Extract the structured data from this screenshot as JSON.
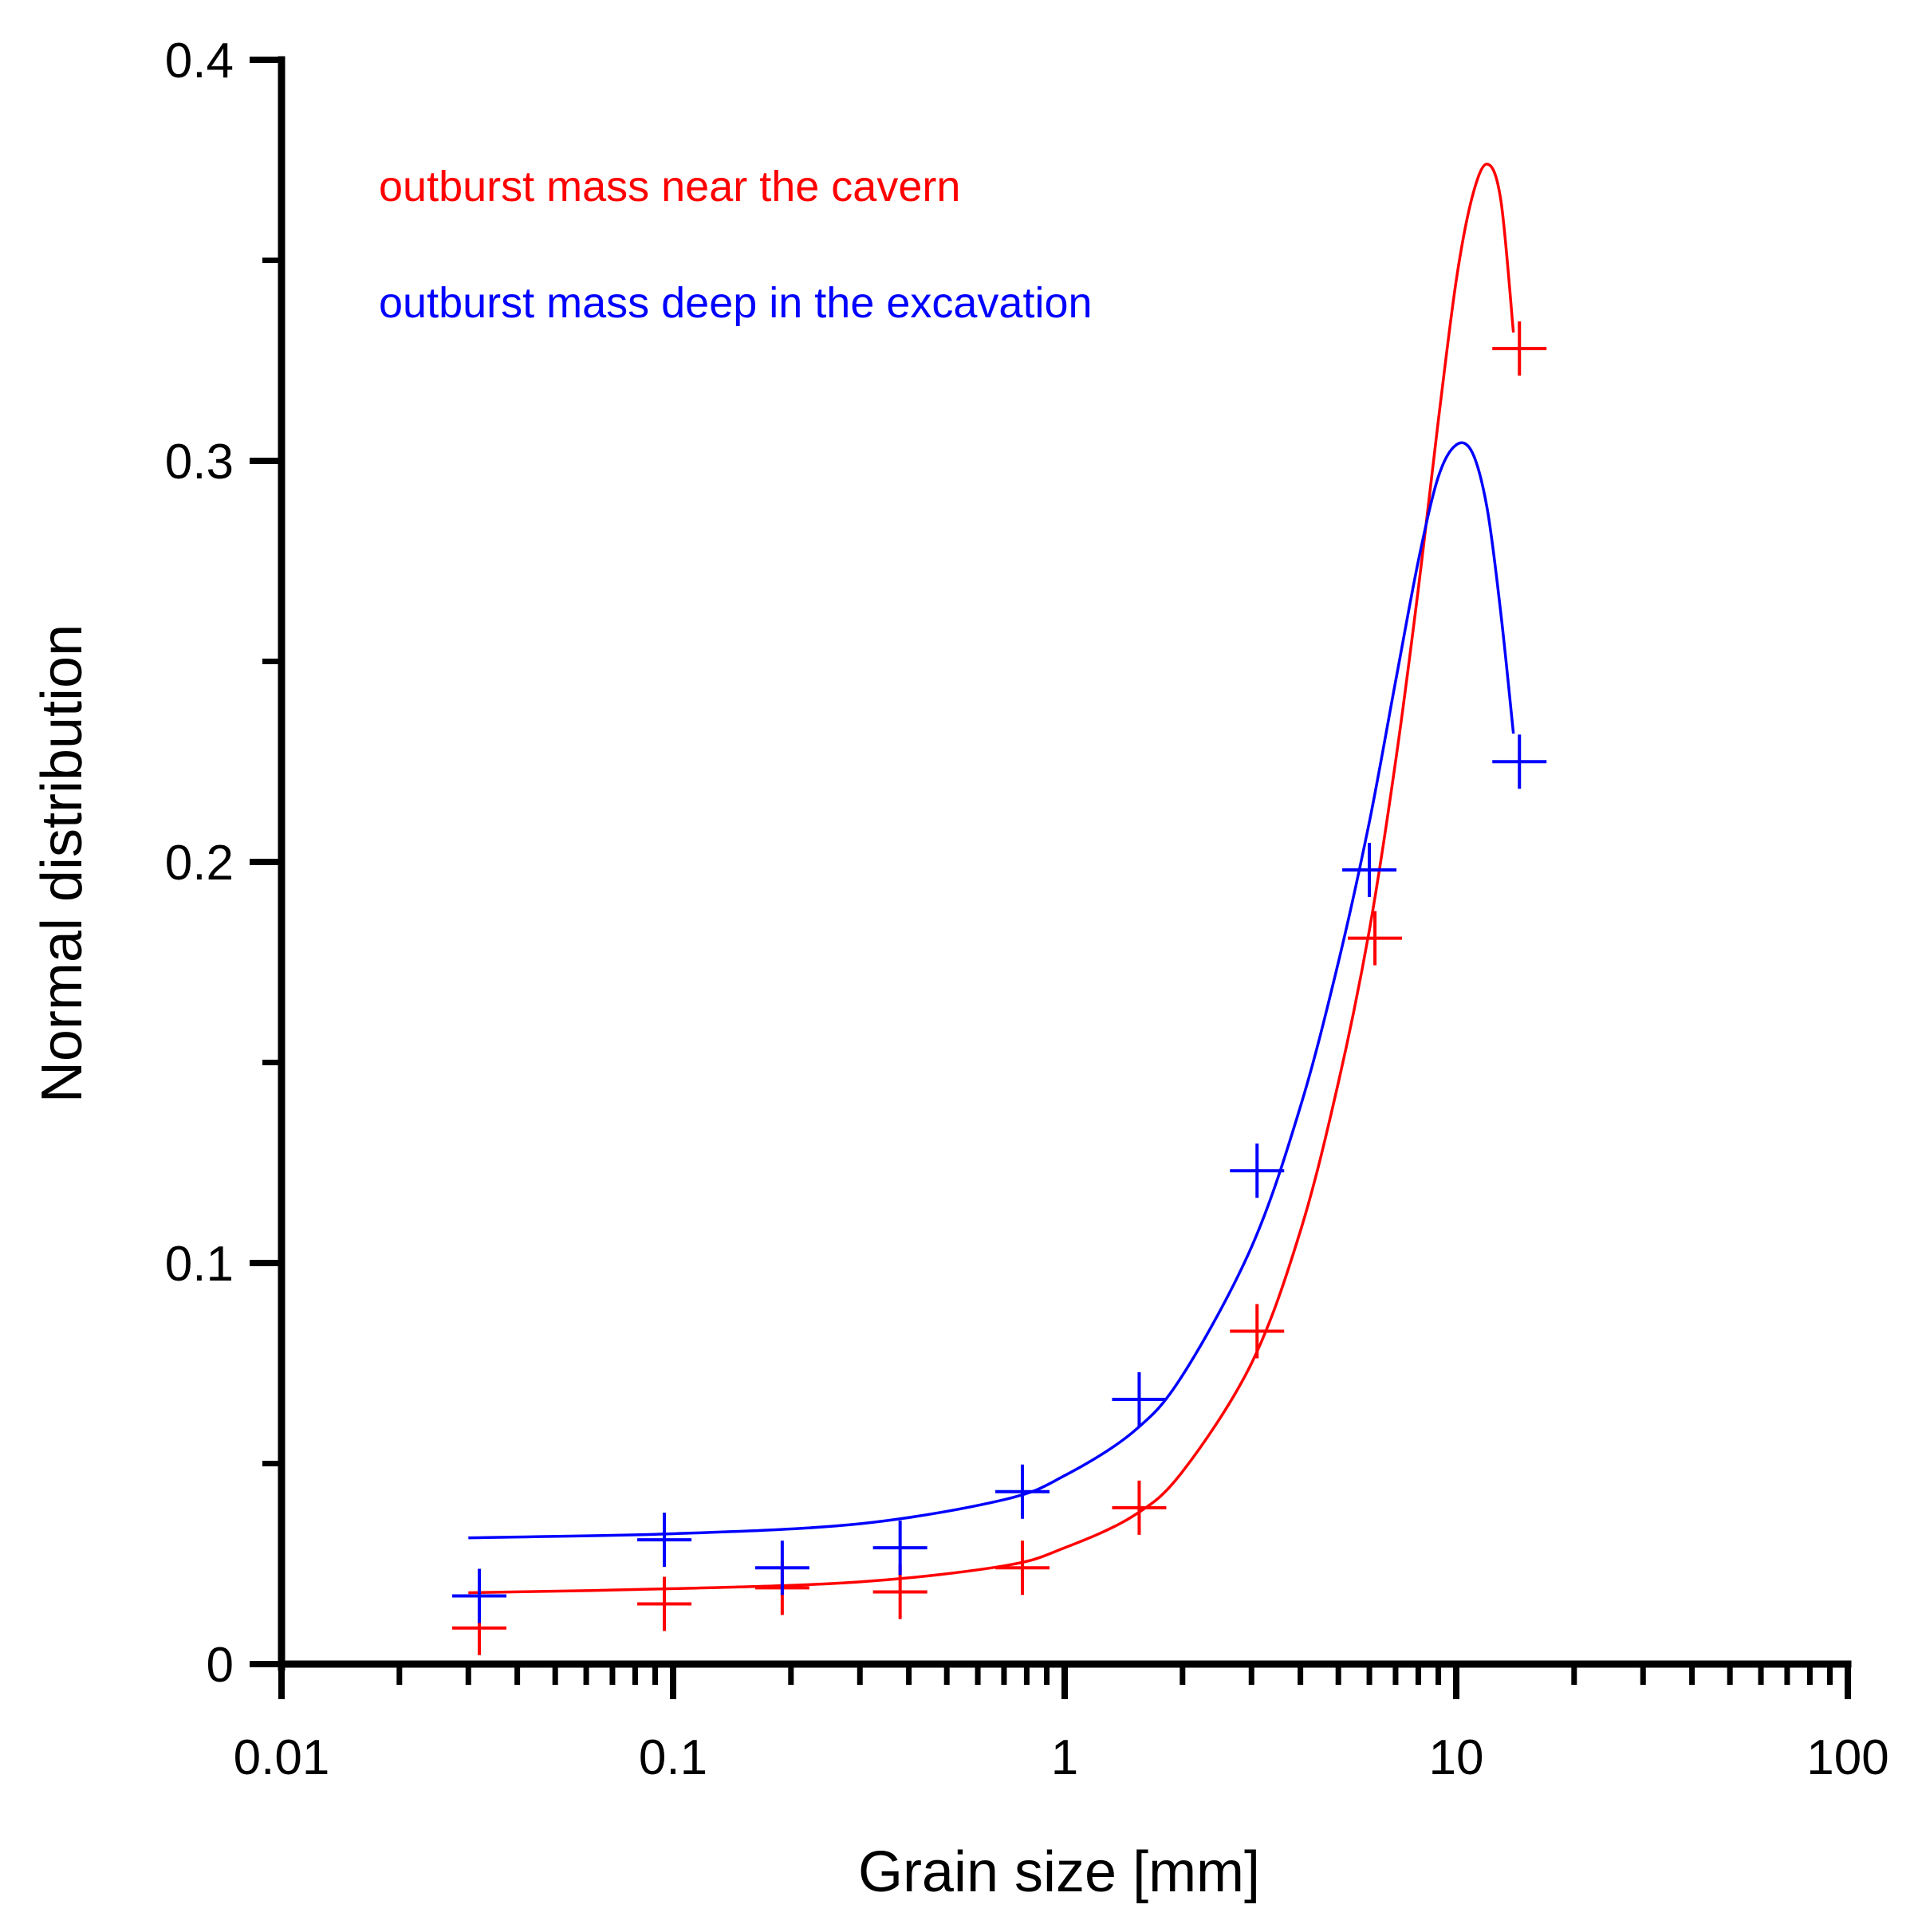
{
  "chart_data": {
    "type": "scatter",
    "title": "",
    "xlabel": "Grain size [mm]",
    "ylabel": "Normal distribution",
    "xscale": "log",
    "xlim": [
      0.01,
      100
    ],
    "ylim": [
      0,
      0.4
    ],
    "xticks": [
      {
        "value": 0.01,
        "label": "0.01"
      },
      {
        "value": 0.1,
        "label": "0.1"
      },
      {
        "value": 1,
        "label": "1"
      },
      {
        "value": 10,
        "label": "10"
      },
      {
        "value": 100,
        "label": "100"
      }
    ],
    "yticks": [
      {
        "value": 0,
        "label": "0"
      },
      {
        "value": 0.1,
        "label": "0.1"
      },
      {
        "value": 0.2,
        "label": "0.2"
      },
      {
        "value": 0.3,
        "label": "0.3"
      },
      {
        "value": 0.4,
        "label": "0.4"
      }
    ],
    "yminor": [
      0.05,
      0.15,
      0.25,
      0.35
    ],
    "grid": false,
    "legend_position": "top-left",
    "series": [
      {
        "name": "outburst mass near the cavern",
        "color": "#ff0000",
        "marker": "plus",
        "points": [
          {
            "x": 0.032,
            "y": 0.009
          },
          {
            "x": 0.095,
            "y": 0.015
          },
          {
            "x": 0.19,
            "y": 0.019
          },
          {
            "x": 0.38,
            "y": 0.018
          },
          {
            "x": 0.78,
            "y": 0.024
          },
          {
            "x": 1.55,
            "y": 0.039
          },
          {
            "x": 3.1,
            "y": 0.083
          },
          {
            "x": 6.2,
            "y": 0.181
          },
          {
            "x": 14.5,
            "y": 0.328
          }
        ],
        "fit_curve": [
          {
            "x": 0.03,
            "y": 0.0178
          },
          {
            "x": 0.1,
            "y": 0.0188
          },
          {
            "x": 0.3,
            "y": 0.0205
          },
          {
            "x": 0.7,
            "y": 0.0245
          },
          {
            "x": 1.0,
            "y": 0.029
          },
          {
            "x": 1.5,
            "y": 0.037
          },
          {
            "x": 2.0,
            "y": 0.048
          },
          {
            "x": 3.0,
            "y": 0.075
          },
          {
            "x": 4.0,
            "y": 0.108
          },
          {
            "x": 5.0,
            "y": 0.145
          },
          {
            "x": 6.0,
            "y": 0.183
          },
          {
            "x": 7.0,
            "y": 0.225
          },
          {
            "x": 8.0,
            "y": 0.268
          },
          {
            "x": 9.0,
            "y": 0.31
          },
          {
            "x": 10.0,
            "y": 0.345
          },
          {
            "x": 11.0,
            "y": 0.366
          },
          {
            "x": 12.0,
            "y": 0.374
          },
          {
            "x": 13.0,
            "y": 0.365
          },
          {
            "x": 14.0,
            "y": 0.332
          }
        ]
      },
      {
        "name": "outburst mass deep in the excavation",
        "color": "#0000ff",
        "marker": "plus",
        "points": [
          {
            "x": 0.032,
            "y": 0.017
          },
          {
            "x": 0.095,
            "y": 0.031
          },
          {
            "x": 0.19,
            "y": 0.024
          },
          {
            "x": 0.38,
            "y": 0.029
          },
          {
            "x": 0.78,
            "y": 0.043
          },
          {
            "x": 1.55,
            "y": 0.066
          },
          {
            "x": 3.1,
            "y": 0.123
          },
          {
            "x": 6.0,
            "y": 0.198
          },
          {
            "x": 14.5,
            "y": 0.225
          }
        ],
        "fit_curve": [
          {
            "x": 0.03,
            "y": 0.0315
          },
          {
            "x": 0.1,
            "y": 0.0325
          },
          {
            "x": 0.3,
            "y": 0.035
          },
          {
            "x": 0.7,
            "y": 0.041
          },
          {
            "x": 1.0,
            "y": 0.047
          },
          {
            "x": 1.5,
            "y": 0.058
          },
          {
            "x": 2.0,
            "y": 0.072
          },
          {
            "x": 3.0,
            "y": 0.104
          },
          {
            "x": 4.0,
            "y": 0.139
          },
          {
            "x": 5.0,
            "y": 0.175
          },
          {
            "x": 6.0,
            "y": 0.21
          },
          {
            "x": 7.0,
            "y": 0.245
          },
          {
            "x": 8.0,
            "y": 0.275
          },
          {
            "x": 9.0,
            "y": 0.296
          },
          {
            "x": 10.0,
            "y": 0.304
          },
          {
            "x": 11.0,
            "y": 0.302
          },
          {
            "x": 12.0,
            "y": 0.288
          },
          {
            "x": 13.0,
            "y": 0.262
          },
          {
            "x": 14.0,
            "y": 0.232
          }
        ]
      }
    ]
  }
}
